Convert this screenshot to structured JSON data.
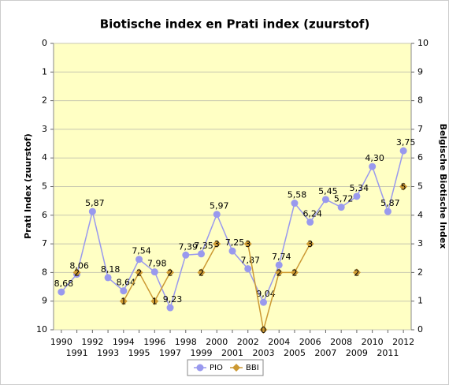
{
  "chart_data": {
    "type": "line",
    "title": "Biotische index en Prati index (zuurstof)",
    "y_label": "Prati Index (zuurstof)",
    "y2_label": "Belgische Biotische Index",
    "categories": [
      "1990",
      "1991",
      "1992",
      "1993",
      "1994",
      "1995",
      "1996",
      "1997",
      "1998",
      "1999",
      "2000",
      "2001",
      "2002",
      "2003",
      "2004",
      "2005",
      "2006",
      "2007",
      "2008",
      "2009",
      "2010",
      "2011",
      "2012"
    ],
    "series": [
      {
        "name": "PIO",
        "color": "#9999ee",
        "marker": "circle",
        "axis": "y",
        "values": [
          8.68,
          8.06,
          5.87,
          8.18,
          8.64,
          7.54,
          7.98,
          9.23,
          7.39,
          7.35,
          5.97,
          7.25,
          7.87,
          9.04,
          7.74,
          5.58,
          6.24,
          5.45,
          5.72,
          5.34,
          4.3,
          5.87,
          3.75
        ],
        "value_labels": [
          "8,68",
          "8,06",
          "5,87",
          "8,18",
          "8,64",
          "7,54",
          "7,98",
          "9,23",
          "7,39",
          "7,35",
          "5,97",
          "7,25",
          "7,87",
          "9,04",
          "7,74",
          "5,58",
          "6,24",
          "5,45",
          "5,72",
          "5,34",
          "4,30",
          "5,87",
          "3,75"
        ]
      },
      {
        "name": "BBI",
        "color": "#cc9933",
        "marker": "diamond",
        "axis": "y2",
        "values": [
          null,
          2,
          null,
          null,
          1,
          2,
          1,
          2,
          null,
          2,
          3,
          null,
          3,
          0,
          2,
          2,
          3,
          null,
          null,
          2,
          null,
          null,
          5
        ]
      }
    ],
    "ylim": [
      10,
      0
    ],
    "yticks": [
      0,
      1,
      2,
      3,
      4,
      5,
      6,
      7,
      8,
      9,
      10
    ],
    "y2lim": [
      0,
      10
    ],
    "y2ticks": [
      0,
      1,
      2,
      3,
      4,
      5,
      6,
      7,
      8,
      9,
      10
    ],
    "grid": true,
    "legend": "bottom"
  }
}
